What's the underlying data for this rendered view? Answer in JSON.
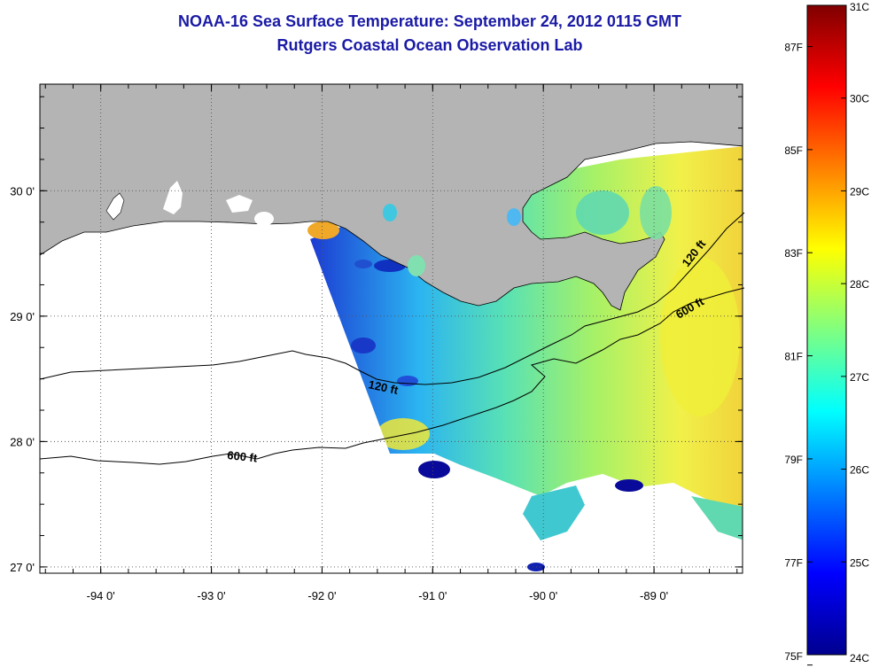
{
  "title": "NOAA-16 Sea Surface Temperature:  September 24, 2012 0115 GMT",
  "subtitle": "Rutgers Coastal Ocean Observation Lab",
  "map": {
    "lon_ticks": [
      {
        "value": -94,
        "label": "-94 0'"
      },
      {
        "value": -93,
        "label": "-93 0'"
      },
      {
        "value": -92,
        "label": "-92 0'"
      },
      {
        "value": -91,
        "label": "-91 0'"
      },
      {
        "value": -90,
        "label": "-90 0'"
      },
      {
        "value": -89,
        "label": "-89 0'"
      }
    ],
    "lat_ticks": [
      {
        "value": 30,
        "label": "30 0'"
      },
      {
        "value": 29,
        "label": "29 0'"
      },
      {
        "value": 28,
        "label": "28 0'"
      },
      {
        "value": 27,
        "label": "27 0'"
      }
    ],
    "lon_range": [
      -94.55,
      -88.2
    ],
    "lat_range": [
      26.95,
      30.85
    ],
    "contours": [
      {
        "label": "120 ft",
        "depth_ft": 120
      },
      {
        "label": "600 ft",
        "depth_ft": 600
      },
      {
        "label": "120 ft",
        "depth_ft": 120
      },
      {
        "label": "600 ft",
        "depth_ft": 600
      }
    ],
    "land_color": "#b4b4b4",
    "no_data_color": "#ffffff"
  },
  "colorbar": {
    "celsius": [
      "31C",
      "30C",
      "29C",
      "28C",
      "27C",
      "26C",
      "25C",
      "24C"
    ],
    "fahrenheit": [
      "87F",
      "85F",
      "83F",
      "81F",
      "79F",
      "77F",
      "75F"
    ],
    "celsius_range": [
      24,
      31
    ],
    "colormap": "jet"
  }
}
